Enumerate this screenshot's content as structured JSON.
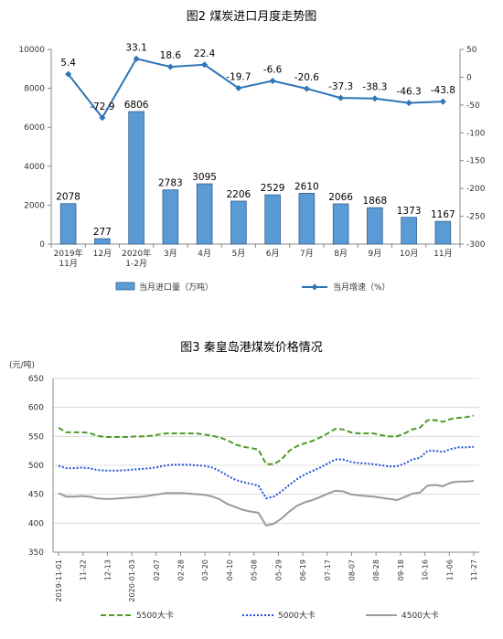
{
  "chart_data": [
    {
      "type": "bar+line",
      "title": "图2  煤炭进口月度走势图",
      "categories": [
        [
          "2019年",
          "11月"
        ],
        [
          "12月"
        ],
        [
          "2020年",
          "1-2月"
        ],
        [
          "3月"
        ],
        [
          "4月"
        ],
        [
          "5月"
        ],
        [
          "6月"
        ],
        [
          "7月"
        ],
        [
          "8月"
        ],
        [
          "9月"
        ],
        [
          "10月"
        ],
        [
          "11月"
        ]
      ],
      "series": [
        {
          "name": "当月进口量（万吨）",
          "type": "bar",
          "axis": "left",
          "values": [
            2078,
            277,
            6806,
            2783,
            3095,
            2206,
            2529,
            2610,
            2066,
            1868,
            1373,
            1167
          ],
          "color": "#5b9bd5"
        },
        {
          "name": "当月增速（%）",
          "type": "line",
          "axis": "right",
          "values": [
            5.4,
            -72.9,
            33.1,
            18.6,
            22.4,
            -19.7,
            -6.6,
            -20.6,
            -37.3,
            -38.3,
            -46.3,
            -43.8
          ],
          "color": "#2e75b6"
        }
      ],
      "yleft": {
        "lim": [
          0,
          10000
        ],
        "ticks": [
          0,
          2000,
          4000,
          6000,
          8000,
          10000
        ]
      },
      "yright": {
        "lim": [
          -300,
          50
        ],
        "ticks": [
          50,
          0,
          -50,
          -100,
          -150,
          -200,
          -250,
          -300
        ]
      },
      "legend": "bottom"
    },
    {
      "type": "line",
      "title": "图3   秦皇岛港煤炭价格情况",
      "ylabel": "(元/吨)",
      "ylim": [
        350,
        650
      ],
      "yticks": [
        350,
        400,
        450,
        500,
        550,
        600,
        650
      ],
      "xticks": [
        "2019-11-01",
        "11-22",
        "12-13",
        "2020-01-03",
        "02-07",
        "02-28",
        "03-20",
        "04-10",
        "05-08",
        "05-29",
        "06-19",
        "07-17",
        "08-07",
        "08-28",
        "09-18",
        "10-16",
        "11-06",
        "11-27"
      ],
      "series": [
        {
          "name": "5500大卡",
          "style": "dashed",
          "color": "#4e9a28",
          "values": [
            565,
            557,
            557,
            557,
            556,
            551,
            549,
            549,
            549,
            549,
            550,
            550,
            551,
            553,
            555,
            555,
            555,
            555,
            555,
            553,
            551,
            548,
            543,
            536,
            532,
            530,
            527,
            502,
            502,
            510,
            525,
            533,
            538,
            542,
            548,
            555,
            563,
            562,
            557,
            555,
            555,
            555,
            552,
            550,
            550,
            555,
            562,
            565,
            578,
            578,
            575,
            580,
            582,
            583,
            586
          ]
        },
        {
          "name": "5000大卡",
          "style": "dotted",
          "color": "#1f4fd8",
          "values": [
            499,
            495,
            495,
            496,
            495,
            492,
            491,
            491,
            491,
            492,
            493,
            494,
            495,
            497,
            500,
            501,
            501,
            501,
            500,
            499,
            496,
            490,
            482,
            475,
            471,
            468,
            465,
            443,
            446,
            455,
            466,
            476,
            484,
            490,
            496,
            503,
            510,
            510,
            506,
            504,
            503,
            502,
            500,
            498,
            498,
            503,
            510,
            513,
            525,
            525,
            523,
            528,
            531,
            531,
            532
          ]
        },
        {
          "name": "4500大卡",
          "style": "solid",
          "color": "#9a9a9a",
          "values": [
            452,
            446,
            446,
            447,
            446,
            443,
            442,
            442,
            443,
            444,
            445,
            446,
            448,
            450,
            452,
            452,
            452,
            451,
            450,
            449,
            446,
            441,
            433,
            428,
            423,
            420,
            418,
            396,
            399,
            408,
            420,
            430,
            436,
            440,
            445,
            451,
            456,
            455,
            450,
            448,
            447,
            446,
            444,
            442,
            440,
            445,
            451,
            453,
            465,
            466,
            464,
            470,
            472,
            472,
            473
          ]
        }
      ],
      "grid": true,
      "legend": "bottom"
    }
  ]
}
